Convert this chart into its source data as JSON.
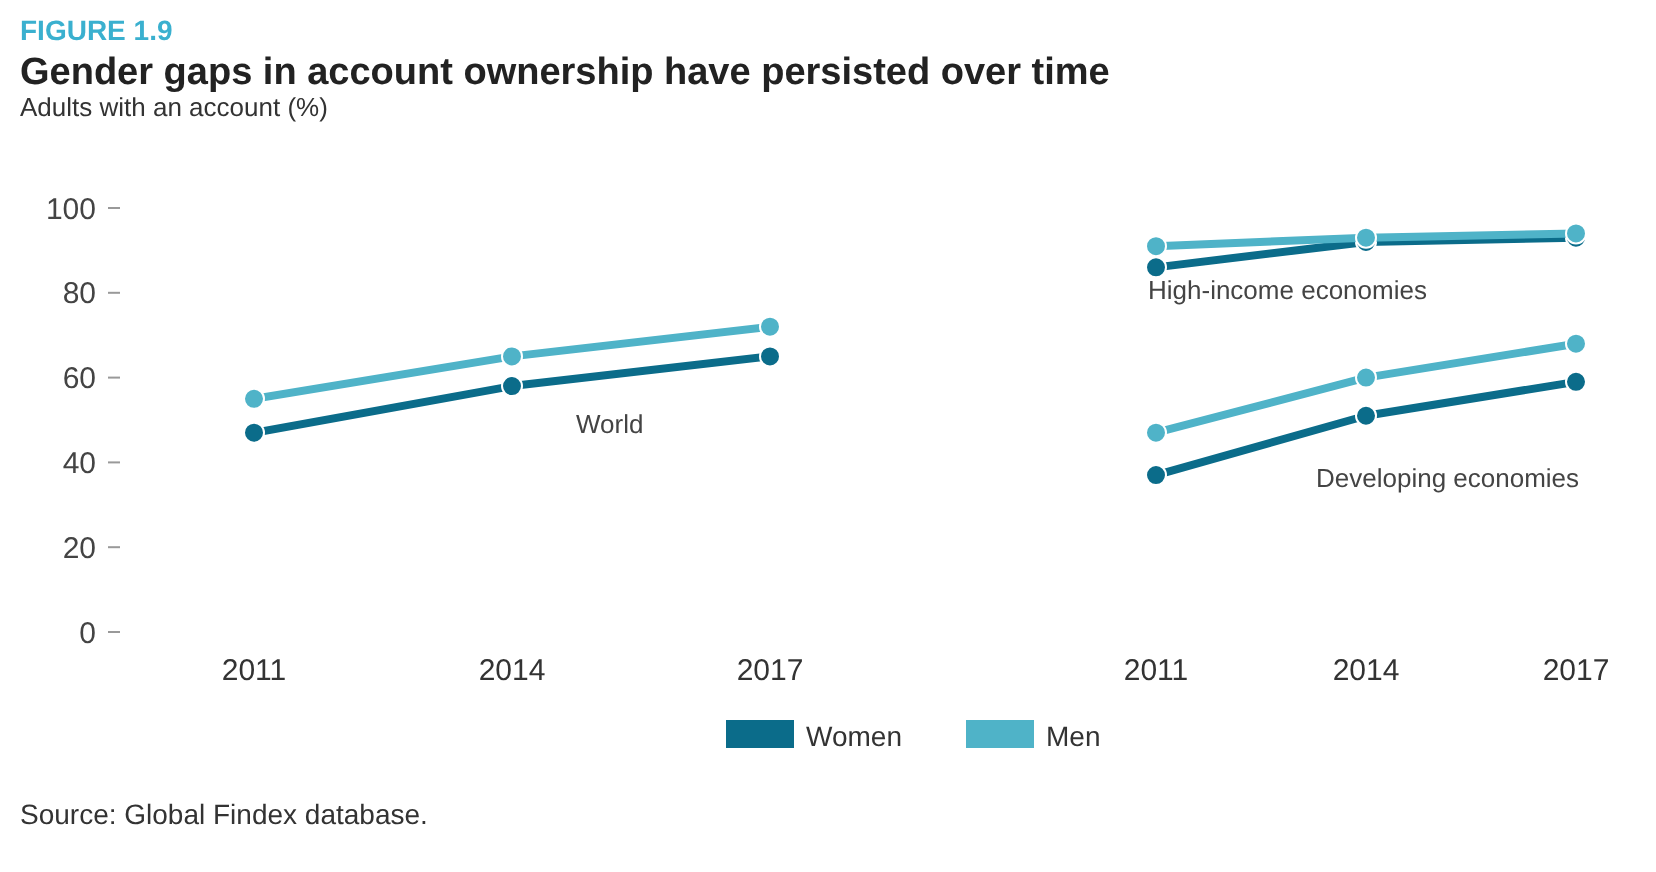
{
  "chart_data": [
    {
      "type": "line",
      "title": "Gender gaps in account ownership have persisted over time",
      "ylabel": "Adults with an account (%)",
      "annotations": [
        "FIGURE 1.9",
        "World",
        "Source: Global Findex database."
      ],
      "categories": [
        "2011",
        "2014",
        "2017"
      ],
      "series": [
        {
          "name": "Women",
          "color": "#0b6c8a",
          "values": [
            47,
            58,
            65
          ]
        },
        {
          "name": "Men",
          "color": "#4fb3c8",
          "values": [
            55,
            65,
            72
          ]
        }
      ],
      "ylim": [
        0,
        100
      ],
      "yticks": [
        0,
        20,
        40,
        60,
        80,
        100
      ],
      "grid": false,
      "legend": "bottom",
      "marker": "circle",
      "line_style": "solid"
    },
    {
      "type": "line",
      "annotations": [
        "High-income economies",
        "Developing economies"
      ],
      "categories": [
        "2011",
        "2014",
        "2017"
      ],
      "series": [
        {
          "color": "#0b6c8a",
          "values": [
            86,
            92,
            93
          ]
        },
        {
          "color": "#4fb3c8",
          "values": [
            91,
            93,
            94
          ]
        },
        {
          "color": "#0b6c8a",
          "values": [
            37,
            51,
            59
          ]
        },
        {
          "color": "#4fb3c8",
          "values": [
            47,
            60,
            68
          ]
        }
      ],
      "ylim": [
        0,
        100
      ],
      "grid": false,
      "marker": "circle",
      "line_style": "solid",
      "tick_labels": "x"
    }
  ]
}
